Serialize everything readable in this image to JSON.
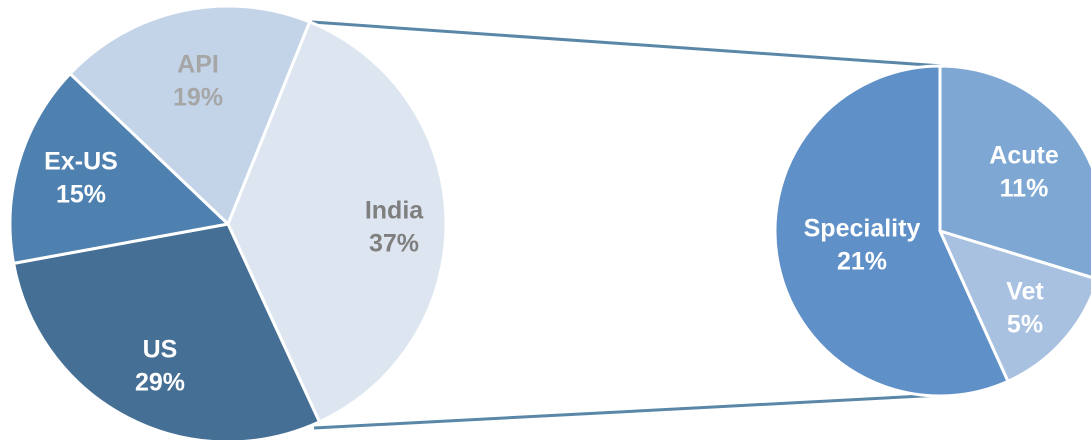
{
  "chart_data": [
    {
      "type": "pie",
      "slices": [
        {
          "label": "India",
          "value": 37,
          "pct_label": "37%",
          "color": "#dde6f0",
          "text_color": "#7f7f7f"
        },
        {
          "label": "US",
          "value": 29,
          "pct_label": "29%",
          "color": "#466f95",
          "text_color": "#ffffff"
        },
        {
          "label": "Ex-US",
          "value": 15,
          "pct_label": "15%",
          "color": "#4f81b0",
          "text_color": "#ffffff"
        },
        {
          "label": "API",
          "value": 19,
          "pct_label": "19%",
          "color": "#c3d4e8",
          "text_color": "#a6a6a6"
        }
      ]
    },
    {
      "type": "pie",
      "slices": [
        {
          "label": "Acute",
          "value": 11,
          "pct_label": "11%",
          "color": "#7ea8d3",
          "text_color": "#ffffff"
        },
        {
          "label": "Vet",
          "value": 5,
          "pct_label": "5%",
          "color": "#a8c1e0",
          "text_color": "#ffffff"
        },
        {
          "label": "Speciality",
          "value": 21,
          "pct_label": "21%",
          "color": "#5f90c7",
          "text_color": "#ffffff"
        }
      ]
    }
  ]
}
